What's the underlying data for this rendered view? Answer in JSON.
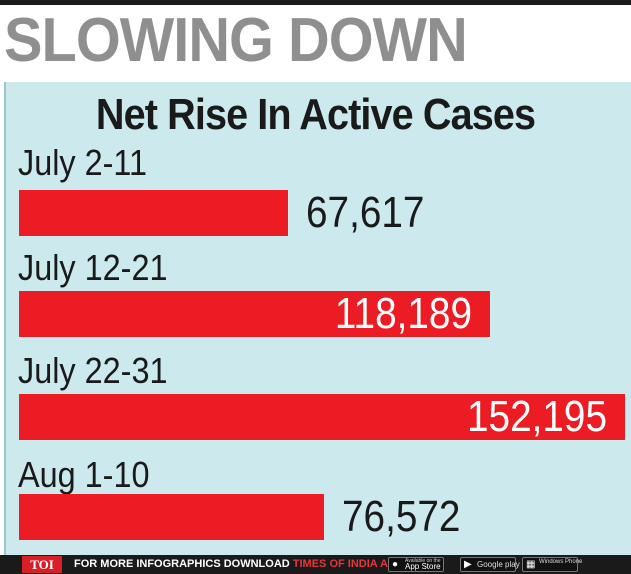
{
  "headline": "SLOWING DOWN",
  "chart_data": {
    "type": "bar",
    "orientation": "horizontal",
    "title": "Net Rise In Active Cases",
    "xlabel": "",
    "ylabel": "",
    "categories": [
      "July 2-11",
      "July 12-21",
      "July 22-31",
      "Aug 1-10"
    ],
    "values": [
      67617,
      118189,
      152195,
      76572
    ],
    "value_labels": [
      "67,617",
      "118,189",
      "152,195",
      "76,572"
    ],
    "xlim": [
      0,
      152195
    ],
    "grid": false,
    "bar_color": "#ec1c24",
    "background_color": "#cce9ed"
  },
  "footer": {
    "logo": "TOI",
    "text_prefix": "FOR MORE  INFOGRAPHICS DOWNLOAD ",
    "text_app": "TIMES OF INDIA  APP",
    "badges": {
      "appstore_small": "Available on the",
      "appstore": "App Store",
      "googleplay": "Google play",
      "windows": "Windows Phone"
    }
  }
}
